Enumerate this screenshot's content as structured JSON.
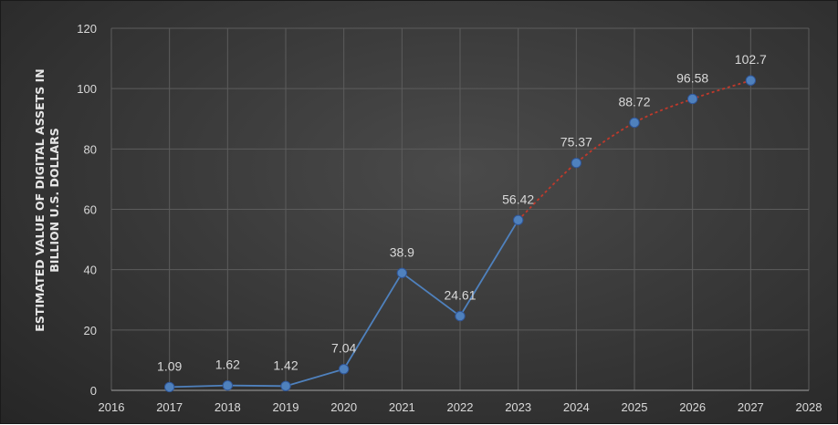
{
  "chart_data": {
    "type": "line",
    "title": "",
    "xlabel": "",
    "ylabel_lines": [
      "ESTIMATED VALUE OF DIGITAL ASSETS IN",
      "BILLION U.S. DOLLARS"
    ],
    "xlim": [
      2016,
      2028
    ],
    "ylim": [
      0,
      120
    ],
    "x_ticks": [
      "2016",
      "2017",
      "2018",
      "2019",
      "2020",
      "2021",
      "2022",
      "2023",
      "2024",
      "2025",
      "2026",
      "2027",
      "2028"
    ],
    "y_ticks": [
      "0",
      "20",
      "40",
      "60",
      "80",
      "100",
      "120"
    ],
    "grid": true,
    "series": [
      {
        "style": "solid",
        "color": "#4f81bd",
        "points": [
          {
            "x": 2017,
            "y": 1.09,
            "label": "1.09"
          },
          {
            "x": 2018,
            "y": 1.62,
            "label": "1.62"
          },
          {
            "x": 2019,
            "y": 1.42,
            "label": "1.42"
          },
          {
            "x": 2020,
            "y": 7.04,
            "label": "7.04"
          },
          {
            "x": 2021,
            "y": 38.9,
            "label": "38.9"
          },
          {
            "x": 2022,
            "y": 24.61,
            "label": "24.61"
          },
          {
            "x": 2023,
            "y": 56.42,
            "label": "56.42"
          }
        ]
      },
      {
        "style": "dashed",
        "color": "#c0392b",
        "points": [
          {
            "x": 2024,
            "y": 75.37,
            "label": "75.37"
          },
          {
            "x": 2025,
            "y": 88.72,
            "label": "88.72"
          },
          {
            "x": 2026,
            "y": 96.58,
            "label": "96.58"
          },
          {
            "x": 2027,
            "y": 102.7,
            "label": "102.7"
          }
        ]
      }
    ],
    "colors": {
      "marker": "#4f81bd",
      "marker_edge": "#2f5597",
      "grid": "#5c5c5c",
      "axis": "#8c8c8c"
    }
  }
}
